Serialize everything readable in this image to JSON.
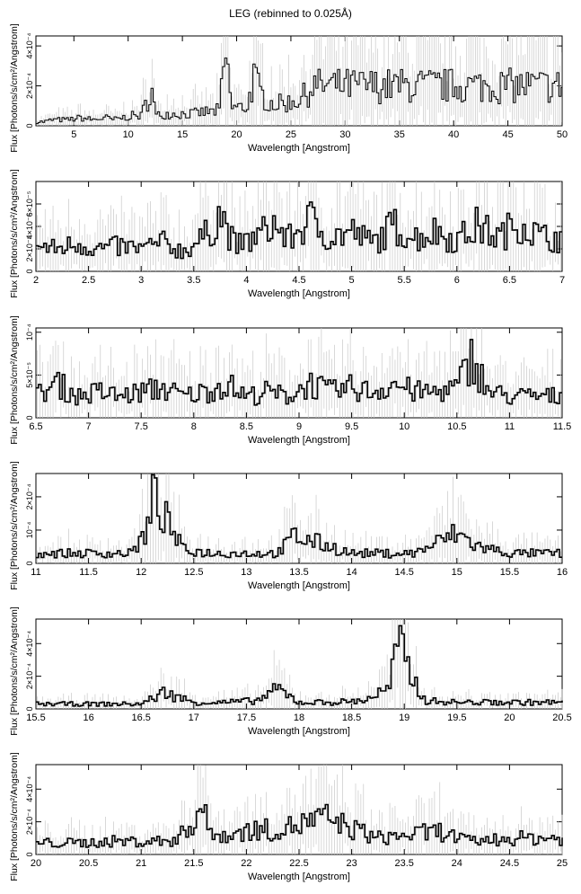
{
  "title": "LEG (rebinned to 0.025Å)",
  "colors": {
    "data": "#000000",
    "errorbar": "#c8c8c8",
    "axis": "#000000",
    "background": "#ffffff"
  },
  "chart_data": [
    {
      "type": "line",
      "xlabel": "Wavelength [Angstrom]",
      "ylabel": "Flux [Photons/s/cm²/Angstrom]",
      "xlim": [
        1.5,
        50
      ],
      "ylim": [
        0,
        0.00045
      ],
      "xticks": [
        5,
        10,
        15,
        20,
        25,
        30,
        35,
        40,
        45,
        50
      ],
      "xtick_labels": [
        "5",
        "10",
        "15",
        "20",
        "25",
        "30",
        "35",
        "40",
        "45",
        "50"
      ],
      "yticks": [
        0,
        0.0002,
        0.0004
      ],
      "ytick_labels": [
        "0",
        "2×10⁻⁴",
        "4×10⁻⁴"
      ],
      "step": 0.2,
      "series": [
        {
          "x": [
            2.2,
            3.1,
            4.5,
            5.6,
            6.8,
            7.9,
            8.6,
            9.5,
            10.3,
            11.2,
            12.1,
            12.6,
            13.5,
            14.2,
            15.1,
            16,
            17.2,
            17.8,
            18.4,
            18.97,
            19.6,
            20.3,
            21.0,
            21.6,
            22.2,
            22.9,
            23.6,
            24.3,
            25.0,
            25.5,
            26.0,
            26.5,
            27.0
          ],
          "y": [
            2e-05,
            3e-05,
            3e-05,
            4e-05,
            3e-05,
            4e-05,
            3e-05,
            4e-05,
            5e-05,
            5e-05,
            0.00017,
            5e-05,
            6e-05,
            6e-05,
            6e-05,
            6e-05,
            7e-05,
            7e-05,
            8e-05,
            0.00034,
            9e-05,
            9e-05,
            0.0001,
            0.00024,
            0.00016,
            0.00012,
            0.00011,
            0.00011,
            0.00012,
            0.00013,
            0.00014,
            0.00016,
            0.0002
          ]
        }
      ]
    },
    {
      "type": "line",
      "xlabel": "Wavelength [Angstrom]",
      "ylabel": "Flux [Photons/s/cm²/Angstrom]",
      "xlim": [
        2,
        7
      ],
      "ylim": [
        0,
        8e-05
      ],
      "xticks": [
        2,
        2.5,
        3,
        3.5,
        4,
        4.5,
        5,
        5.5,
        6,
        6.5,
        7
      ],
      "xtick_labels": [
        "2",
        "2.5",
        "3",
        "3.5",
        "4",
        "4.5",
        "5",
        "5.5",
        "6",
        "6.5",
        "7"
      ],
      "yticks": [
        0,
        2e-05,
        4e-05,
        6e-05
      ],
      "ytick_labels": [
        "0",
        "2×10⁻⁵",
        "4×10⁻⁵",
        "6×10⁻⁵"
      ],
      "step": 0.025,
      "series": [
        {
          "x": [
            2.0,
            2.2,
            2.4,
            2.6,
            2.8,
            3.0,
            3.2,
            3.4,
            3.6,
            3.75,
            3.9,
            4.1,
            4.25,
            4.4,
            4.6,
            4.8,
            5.0,
            5.2,
            5.4,
            5.6,
            5.8,
            6.0,
            6.2,
            6.4,
            6.6,
            6.8,
            7.0
          ],
          "y": [
            2.2e-05,
            2e-05,
            2.5e-05,
            2e-05,
            2.2e-05,
            2e-05,
            2.5e-05,
            1.8e-05,
            3e-05,
            5e-05,
            2.2e-05,
            3e-05,
            4.2e-05,
            2.8e-05,
            4.5e-05,
            3e-05,
            3.5e-05,
            2.5e-05,
            4e-05,
            3e-05,
            3.5e-05,
            2.8e-05,
            4e-05,
            3e-05,
            4.5e-05,
            3e-05,
            3e-05
          ]
        }
      ]
    },
    {
      "type": "line",
      "xlabel": "Wavelength [Angstrom]",
      "ylabel": "Flux [Photons/s/cm²/Angstrom]",
      "xlim": [
        6.5,
        11.5
      ],
      "ylim": [
        0,
        0.000105
      ],
      "xticks": [
        6.5,
        7,
        7.5,
        8,
        8.5,
        9,
        9.5,
        10,
        10.5,
        11,
        11.5
      ],
      "xtick_labels": [
        "6.5",
        "7",
        "7.5",
        "8",
        "8.5",
        "9",
        "9.5",
        "10",
        "10.5",
        "11",
        "11.5"
      ],
      "yticks": [
        0,
        5e-05,
        0.0001
      ],
      "ytick_labels": [
        "0",
        "5×10⁻⁵",
        "10⁻⁴"
      ],
      "step": 0.025,
      "series": [
        {
          "x": [
            6.5,
            6.7,
            6.9,
            7.1,
            7.3,
            7.5,
            7.7,
            7.9,
            8.1,
            8.3,
            8.5,
            8.7,
            8.9,
            9.1,
            9.3,
            9.5,
            9.7,
            9.9,
            10.1,
            10.3,
            10.5,
            10.65,
            10.8,
            11.0,
            11.2,
            11.5
          ],
          "y": [
            2.5e-05,
            4e-05,
            2.5e-05,
            3e-05,
            2.5e-05,
            3e-05,
            3.5e-05,
            2.5e-05,
            3e-05,
            4e-05,
            2.5e-05,
            3e-05,
            2.5e-05,
            4e-05,
            3e-05,
            3.5e-05,
            3e-05,
            4e-05,
            3e-05,
            3e-05,
            3.5e-05,
            7e-05,
            3e-05,
            2.5e-05,
            2.5e-05,
            2.5e-05
          ]
        }
      ]
    },
    {
      "type": "line",
      "xlabel": "Wavelength [Angstrom]",
      "ylabel": "Flux [Photons/s/cm²/Angstrom]",
      "xlim": [
        11,
        16
      ],
      "ylim": [
        0,
        0.00027
      ],
      "xticks": [
        11,
        11.5,
        12,
        12.5,
        13,
        13.5,
        14,
        14.5,
        15,
        15.5,
        16
      ],
      "xtick_labels": [
        "11",
        "11.5",
        "12",
        "12.5",
        "13",
        "13.5",
        "14",
        "14.5",
        "15",
        "15.5",
        "16"
      ],
      "yticks": [
        0,
        0.0001,
        0.0002
      ],
      "ytick_labels": [
        "0",
        "10⁻⁴",
        "2×10⁻⁴"
      ],
      "step": 0.025,
      "series": [
        {
          "x": [
            11.0,
            11.3,
            11.6,
            11.9,
            12.05,
            12.12,
            12.2,
            12.4,
            12.7,
            13.0,
            13.3,
            13.45,
            13.7,
            14.0,
            14.3,
            14.6,
            14.8,
            15.0,
            15.2,
            15.5,
            15.8,
            16.0
          ],
          "y": [
            3e-05,
            3e-05,
            3e-05,
            3e-05,
            9e-05,
            0.00019,
            0.00015,
            4e-05,
            3e-05,
            3e-05,
            3e-05,
            8e-05,
            6e-05,
            3e-05,
            3e-05,
            3e-05,
            6e-05,
            9e-05,
            5e-05,
            3e-05,
            3e-05,
            3e-05
          ]
        }
      ]
    },
    {
      "type": "line",
      "xlabel": "Wavelength [Angstrom]",
      "ylabel": "Flux [Photons/s/cm²/Angstrom]",
      "xlim": [
        15.5,
        20.5
      ],
      "ylim": [
        0,
        0.00055
      ],
      "xticks": [
        15.5,
        16,
        16.5,
        17,
        17.5,
        18,
        18.5,
        19,
        19.5,
        20,
        20.5
      ],
      "xtick_labels": [
        "15.5",
        "16",
        "16.5",
        "17",
        "17.5",
        "18",
        "18.5",
        "19",
        "19.5",
        "20",
        "20.5"
      ],
      "yticks": [
        0,
        0.0002,
        0.0004
      ],
      "ytick_labels": [
        "0",
        "2×10⁻⁴",
        "4×10⁻⁴"
      ],
      "step": 0.025,
      "series": [
        {
          "x": [
            15.5,
            15.8,
            16.2,
            16.5,
            16.72,
            17.0,
            17.3,
            17.6,
            17.8,
            18.0,
            18.3,
            18.6,
            18.85,
            18.95,
            19.02,
            19.2,
            19.5,
            19.8,
            20.1,
            20.5
          ],
          "y": [
            3e-05,
            3e-05,
            3e-05,
            3e-05,
            0.0001,
            4e-05,
            4e-05,
            5e-05,
            0.00012,
            4e-05,
            4e-05,
            5e-05,
            0.00012,
            0.0004,
            0.00025,
            5e-05,
            4e-05,
            4e-05,
            4e-05,
            4e-05
          ]
        }
      ]
    },
    {
      "type": "line",
      "xlabel": "Wavelength [Angstrom]",
      "ylabel": "Flux [Photons/s/cm²/Angstrom]",
      "xlim": [
        20,
        25
      ],
      "ylim": [
        0,
        0.00055
      ],
      "xticks": [
        20,
        20.5,
        21,
        21.5,
        22,
        22.5,
        23,
        23.5,
        24,
        24.5,
        25
      ],
      "xtick_labels": [
        "20",
        "20.5",
        "21",
        "21.5",
        "22",
        "22.5",
        "23",
        "23.5",
        "24",
        "24.5",
        "25"
      ],
      "yticks": [
        0,
        0.0002,
        0.0004
      ],
      "ytick_labels": [
        "0",
        "2×10⁻⁴",
        "4×10⁻⁴"
      ],
      "step": 0.025,
      "series": [
        {
          "x": [
            20.2,
            20.45,
            20.72,
            20.85,
            21.15,
            21.35,
            21.6,
            21.65,
            21.75,
            21.85,
            22.05,
            22.3,
            22.75,
            23.25,
            23.85,
            24.1,
            24.6,
            24.85
          ],
          "y": [
            7e-05,
            7e-05,
            8e-05,
            8e-05,
            8e-05,
            9e-05,
            0.0003,
            0.00011,
            0.00012,
            0.00012,
            0.00015,
            0.00015,
            0.00022,
            0.0001,
            0.00014,
            8e-05,
            0.0001,
            0.0001
          ]
        }
      ]
    }
  ]
}
